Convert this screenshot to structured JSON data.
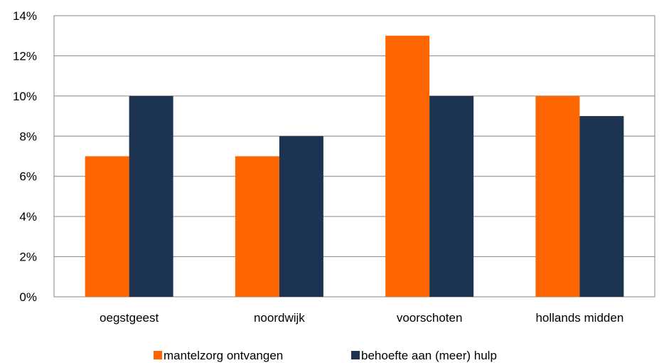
{
  "chart_data": {
    "type": "bar",
    "categories": [
      "oegstgeest",
      "noordwijk",
      "voorschoten",
      "hollands midden"
    ],
    "series": [
      {
        "name": "mantelzorg ontvangen",
        "values": [
          7,
          7,
          13,
          10
        ],
        "color": "#ff6600"
      },
      {
        "name": "behoefte aan (meer) hulp",
        "values": [
          10,
          8,
          10,
          9
        ],
        "color": "#1c3352"
      }
    ],
    "yticks": [
      "0%",
      "2%",
      "4%",
      "6%",
      "8%",
      "10%",
      "12%",
      "14%"
    ],
    "ylim": [
      0,
      14
    ],
    "grid": true,
    "legend_position": "bottom"
  }
}
